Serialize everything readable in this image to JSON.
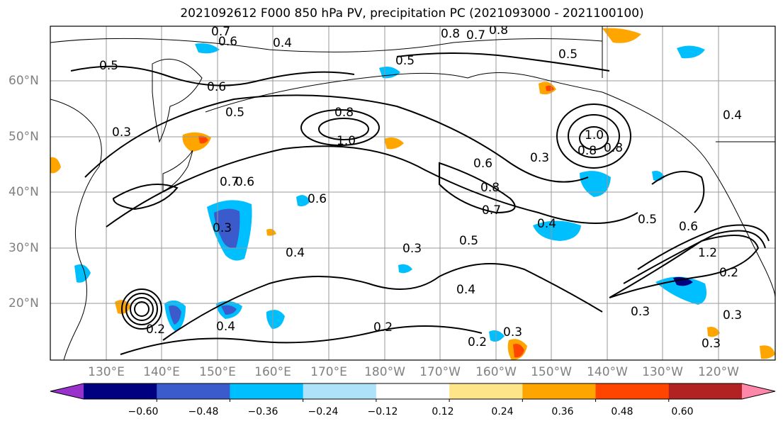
{
  "title": "2021092612 F000 850 hPa PV, precipitation PC (2021093000 - 2021100100)",
  "lat_labels": [
    "60°N",
    "50°N",
    "40°N",
    "30°N",
    "20°N"
  ],
  "lon_labels": [
    "130°E",
    "140°E",
    "150°E",
    "160°E",
    "170°E",
    "180°W",
    "170°W",
    "160°W",
    "150°W",
    "140°W",
    "130°W",
    "120°W"
  ],
  "colorbar": {
    "ticks": [
      "−0.60",
      "−0.48",
      "−0.36",
      "−0.24",
      "−0.12",
      "0.12",
      "0.24",
      "0.36",
      "0.48",
      "0.60"
    ],
    "colors": [
      "#9932cc",
      "#000080",
      "#3b5bcc",
      "#00bfff",
      "#aee2fa",
      "#ffffff",
      "#ffe58a",
      "#ffa500",
      "#ff4500",
      "#b22222",
      "#ff88aa"
    ]
  },
  "contour_labels": [
    "0.7",
    "0.6",
    "0.5",
    "0.4",
    "0.8",
    "0.7",
    "0.8",
    "0.5",
    "0.5",
    "0.6",
    "0.3",
    "0.5",
    "0.8",
    "1.0",
    "0.3",
    "0.6",
    "0.8",
    "0.7",
    "0.7",
    "0.6",
    "0.6",
    "0.3",
    "0.5",
    "0.4",
    "0.3",
    "0.4",
    "0.2",
    "0.4",
    "0.3",
    "0.2",
    "0.3",
    "0.2",
    "0.3",
    "0.2",
    "0.5",
    "0.4",
    "0.3",
    "0.8",
    "1.0",
    "0.8",
    "0.6",
    "1.2",
    "0.4"
  ]
}
